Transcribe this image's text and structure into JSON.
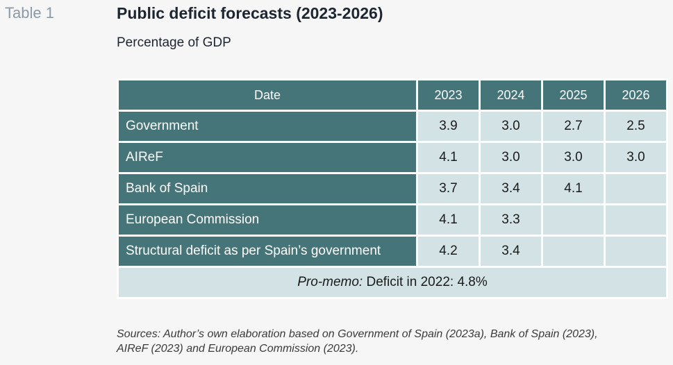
{
  "table_label": "Table 1",
  "title": "Public deficit forecasts (2023-2026)",
  "subtitle": "Percentage of GDP",
  "header": {
    "date": "Date",
    "years": [
      "2023",
      "2024",
      "2025",
      "2026"
    ]
  },
  "rows": [
    {
      "label": "Government",
      "values": [
        "3.9",
        "3.0",
        "2.7",
        "2.5"
      ]
    },
    {
      "label": "AIReF",
      "values": [
        "4.1",
        "3.0",
        "3.0",
        "3.0"
      ]
    },
    {
      "label": "Bank of Spain",
      "values": [
        "3.7",
        "3.4",
        "4.1",
        ""
      ]
    },
    {
      "label": "European Commission",
      "values": [
        "4.1",
        "3.3",
        "",
        ""
      ]
    },
    {
      "label": "Structural deficit as per Spain’s government",
      "values": [
        "4.2",
        "3.4",
        "",
        ""
      ]
    }
  ],
  "memo": {
    "prefix": "Pro-memo:",
    "text": " Deficit in 2022: 4.8%"
  },
  "sources": {
    "line1": "Sources: Author’s own elaboration based on Government of Spain (2023a), Bank of Spain (2023),",
    "line2": "AIReF (2023) and European Commission (2023)."
  },
  "colors": {
    "header_bg": "#457479",
    "cell_bg": "#d3e3e5",
    "label_gray": "#8a9aa6"
  }
}
